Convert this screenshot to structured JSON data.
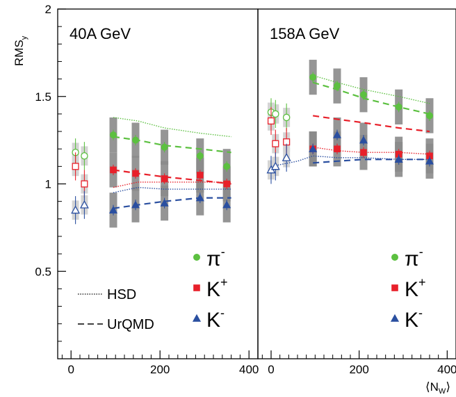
{
  "chart_data": {
    "type": "scatter",
    "y_axis_label": "RMS",
    "y_axis_label_sub": "y",
    "x_axis_label": "⟨N",
    "x_axis_label_sub": "W",
    "x_axis_label_close": "⟩",
    "ylim": [
      0,
      2
    ],
    "y_ticks": [
      "2",
      "1.5",
      "1",
      "0.5"
    ],
    "x_ticks": [
      "0",
      "200",
      "400"
    ],
    "colors": {
      "pi": "#5cc040",
      "kplus": "#e8202a",
      "kminus": "#2a4fa0",
      "band": "#808080"
    },
    "legend_lines": {
      "hsd": "HSD",
      "urqmd": "UrQMD"
    },
    "legend_particles": [
      {
        "key": "pi",
        "label": "π",
        "sup": "-"
      },
      {
        "key": "kplus",
        "label": "K",
        "sup": "+"
      },
      {
        "key": "kminus",
        "label": "K",
        "sup": "-"
      }
    ],
    "panels": [
      {
        "title": "40A GeV",
        "xlim": [
          -30,
          420
        ],
        "data": {
          "pi": {
            "open": [
              [
                10,
                1.18
              ],
              [
                30,
                1.16
              ]
            ],
            "filled": [
              [
                95,
                1.28
              ],
              [
                145,
                1.25
              ],
              [
                210,
                1.21
              ],
              [
                290,
                1.16
              ],
              [
                350,
                1.1
              ]
            ]
          },
          "kplus": {
            "open": [
              [
                10,
                1.1
              ],
              [
                30,
                1.0
              ]
            ],
            "filled": [
              [
                95,
                1.08
              ],
              [
                145,
                1.06
              ],
              [
                210,
                1.03
              ],
              [
                290,
                1.05
              ],
              [
                350,
                1.0
              ]
            ]
          },
          "kminus": {
            "open": [
              [
                10,
                0.85
              ],
              [
                30,
                0.88
              ]
            ],
            "filled": [
              [
                95,
                0.85
              ],
              [
                145,
                0.88
              ],
              [
                210,
                0.89
              ],
              [
                290,
                0.92
              ],
              [
                350,
                0.88
              ]
            ]
          }
        },
        "model_hsd": {
          "pi": [
            [
              95,
              1.38
            ],
            [
              150,
              1.36
            ],
            [
              210,
              1.32
            ],
            [
              290,
              1.29
            ],
            [
              360,
              1.27
            ]
          ],
          "kplus": [
            [
              95,
              0.98
            ],
            [
              150,
              1.01
            ],
            [
              210,
              1.01
            ],
            [
              290,
              1.01
            ],
            [
              360,
              1.01
            ]
          ],
          "kminus": [
            [
              95,
              0.95
            ],
            [
              150,
              0.98
            ],
            [
              210,
              0.97
            ],
            [
              290,
              0.97
            ],
            [
              360,
              0.97
            ]
          ]
        },
        "model_urqmd": {
          "pi": [
            [
              95,
              1.27
            ],
            [
              150,
              1.25
            ],
            [
              210,
              1.22
            ],
            [
              290,
              1.2
            ],
            [
              360,
              1.18
            ]
          ],
          "kplus": [
            [
              95,
              1.08
            ],
            [
              150,
              1.06
            ],
            [
              210,
              1.04
            ],
            [
              290,
              1.02
            ],
            [
              360,
              1.0
            ]
          ],
          "kminus": [
            [
              95,
              0.86
            ],
            [
              150,
              0.88
            ],
            [
              210,
              0.9
            ],
            [
              290,
              0.92
            ],
            [
              360,
              0.92
            ]
          ]
        }
      },
      {
        "title": "158A GeV",
        "xlim": [
          -30,
          420
        ],
        "data": {
          "pi": {
            "open": [
              [
                0,
                1.41
              ],
              [
                10,
                1.4
              ],
              [
                35,
                1.38
              ]
            ],
            "filled": [
              [
                95,
                1.61
              ],
              [
                150,
                1.56
              ],
              [
                210,
                1.51
              ],
              [
                290,
                1.44
              ],
              [
                360,
                1.39
              ]
            ]
          },
          "kplus": {
            "open": [
              [
                0,
                1.36
              ],
              [
                10,
                1.23
              ],
              [
                35,
                1.24
              ]
            ],
            "filled": [
              [
                95,
                1.2
              ],
              [
                150,
                1.2
              ],
              [
                210,
                1.18
              ],
              [
                290,
                1.17
              ],
              [
                360,
                1.16
              ]
            ]
          },
          "kminus": {
            "open": [
              [
                0,
                1.08
              ],
              [
                10,
                1.1
              ],
              [
                35,
                1.15
              ]
            ],
            "filled": [
              [
                95,
                1.2
              ],
              [
                150,
                1.28
              ],
              [
                210,
                1.25
              ],
              [
                290,
                1.14
              ],
              [
                360,
                1.13
              ]
            ]
          }
        },
        "model_hsd": {
          "pi": [
            [
              95,
              1.62
            ],
            [
              150,
              1.58
            ],
            [
              210,
              1.54
            ],
            [
              290,
              1.5
            ],
            [
              360,
              1.46
            ]
          ],
          "kplus": [
            [
              95,
              1.21
            ],
            [
              150,
              1.19
            ],
            [
              210,
              1.18
            ],
            [
              290,
              1.18
            ],
            [
              360,
              1.17
            ]
          ],
          "kminus": [
            [
              0,
              1.1
            ],
            [
              60,
              1.13
            ],
            [
              95,
              1.16
            ],
            [
              150,
              1.15
            ],
            [
              210,
              1.15
            ],
            [
              290,
              1.14
            ],
            [
              360,
              1.14
            ]
          ]
        },
        "model_urqmd": {
          "pi": [
            [
              95,
              1.58
            ],
            [
              150,
              1.54
            ],
            [
              210,
              1.49
            ],
            [
              290,
              1.44
            ],
            [
              360,
              1.4
            ]
          ],
          "kplus": [
            [
              95,
              1.39
            ],
            [
              150,
              1.37
            ],
            [
              210,
              1.35
            ],
            [
              290,
              1.32
            ],
            [
              360,
              1.3
            ]
          ],
          "kminus": [
            [
              95,
              1.12
            ],
            [
              150,
              1.13
            ],
            [
              210,
              1.14
            ],
            [
              290,
              1.14
            ],
            [
              360,
              1.14
            ]
          ]
        }
      }
    ]
  }
}
